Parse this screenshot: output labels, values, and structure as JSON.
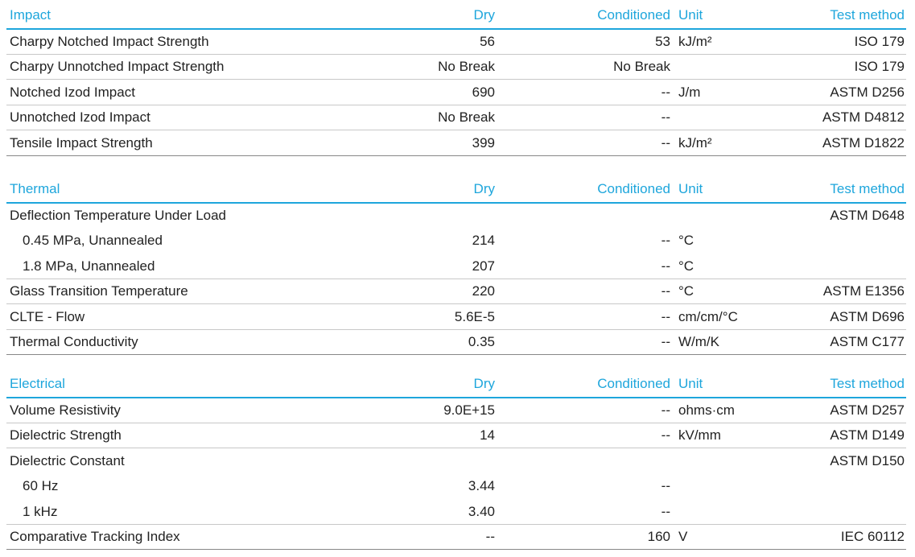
{
  "sections": [
    {
      "header": {
        "title": "Impact",
        "dry": "Dry",
        "conditioned": "Conditioned",
        "unit": "Unit",
        "method": "Test method"
      },
      "rows": [
        {
          "property": "Charpy Notched Impact Strength",
          "dry": "56",
          "conditioned": "53",
          "unit": "kJ/m²",
          "method": "ISO 179"
        },
        {
          "property": "Charpy Unnotched Impact Strength",
          "dry": "No Break",
          "conditioned": "No Break",
          "method": "ISO 179"
        },
        {
          "property": "Notched Izod Impact",
          "dry": "690",
          "conditioned": "--",
          "unit": "J/m",
          "method": "ASTM D256"
        },
        {
          "property": "Unnotched Izod Impact",
          "dry": "No Break",
          "conditioned": "--",
          "method": "ASTM D4812"
        },
        {
          "property": "Tensile Impact Strength",
          "dry": "399",
          "conditioned": "--",
          "unit": "kJ/m²",
          "method": "ASTM D1822"
        }
      ]
    },
    {
      "header": {
        "title": "Thermal",
        "dry": "Dry",
        "conditioned": "Conditioned",
        "unit": "Unit",
        "method": "Test method"
      },
      "rows": [
        {
          "property": "Deflection Temperature Under Load",
          "method": "ASTM D648",
          "subrows": [
            {
              "property": "0.45 MPa, Unannealed",
              "dry": "214",
              "conditioned": "--",
              "unit": "°C"
            },
            {
              "property": "1.8 MPa, Unannealed",
              "dry": "207",
              "conditioned": "--",
              "unit": "°C"
            }
          ]
        },
        {
          "property": "Glass Transition Temperature",
          "dry": "220",
          "conditioned": "--",
          "unit": "°C",
          "method": "ASTM E1356"
        },
        {
          "property": "CLTE - Flow",
          "dry": "5.6E-5",
          "conditioned": "--",
          "unit": "cm/cm/°C",
          "method": "ASTM D696"
        },
        {
          "property": "Thermal Conductivity",
          "dry": "0.35",
          "conditioned": "--",
          "unit": "W/m/K",
          "method": "ASTM C177"
        }
      ]
    },
    {
      "header": {
        "title": "Electrical",
        "dry": "Dry",
        "conditioned": "Conditioned",
        "unit": "Unit",
        "method": "Test method"
      },
      "rows": [
        {
          "property": "Volume Resistivity",
          "dry": "9.0E+15",
          "conditioned": "--",
          "unit": "ohms·cm",
          "method": "ASTM D257"
        },
        {
          "property": "Dielectric Strength",
          "dry": "14",
          "conditioned": "--",
          "unit": "kV/mm",
          "method": "ASTM D149"
        },
        {
          "property": "Dielectric Constant",
          "method": "ASTM D150",
          "subrows": [
            {
              "property": "60 Hz",
              "dry": "3.44",
              "conditioned": "--"
            },
            {
              "property": "1 kHz",
              "dry": "3.40",
              "conditioned": "--"
            }
          ]
        },
        {
          "property": "Comparative Tracking Index",
          "dry": "--",
          "conditioned": "160",
          "unit": "V",
          "method": "IEC 60112"
        }
      ]
    }
  ]
}
